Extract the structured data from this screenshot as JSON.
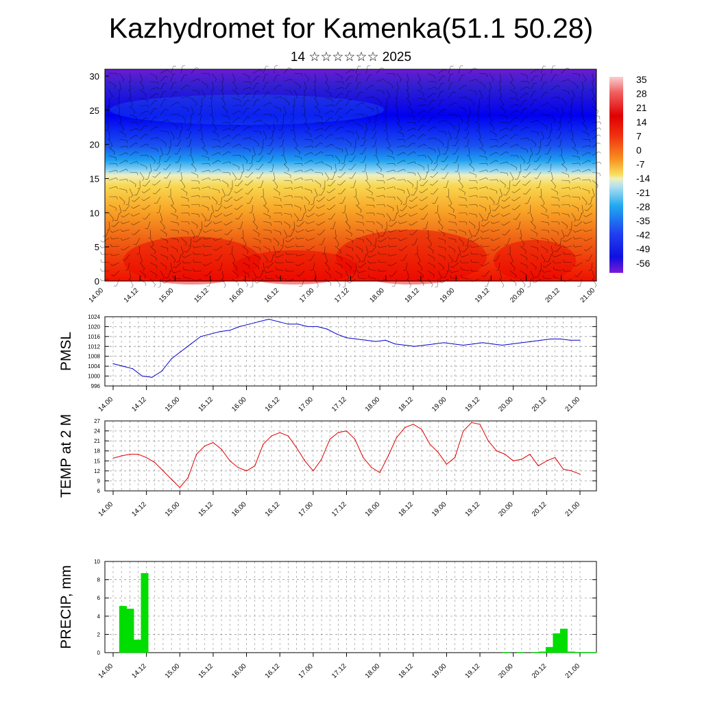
{
  "header": {
    "title": "Kazhydromet for Kamenka(51.1 50.28)",
    "subtitle": "14 ☆☆☆☆☆☆ 2025"
  },
  "x_axis_labels": [
    "14.00",
    "14.12",
    "15.00",
    "15.12",
    "16.00",
    "16.12",
    "17.00",
    "17.12",
    "18.00",
    "18.12",
    "19.00",
    "19.12",
    "20.00",
    "20.12",
    "21.00"
  ],
  "chart_data": [
    {
      "type": "heatmap",
      "name": "temperature-cross-section",
      "x_ticks": [
        "14.00",
        "14.12",
        "15.00",
        "15.12",
        "16.00",
        "16.12",
        "17.00",
        "17.12",
        "18.00",
        "18.12",
        "19.00",
        "19.12",
        "20.00",
        "20.12",
        "21.00"
      ],
      "y_ticks": [
        0,
        5,
        10,
        15,
        20,
        25,
        30
      ],
      "ylim": [
        0,
        31
      ],
      "colorbar_labels": [
        35,
        28,
        21,
        14,
        7,
        0,
        -7,
        -14,
        -21,
        -28,
        -35,
        -42,
        -49,
        -56
      ],
      "colorbar_range": [
        -60,
        40
      ],
      "colors": [
        "#7a1bd6",
        "#2a1bd0",
        "#0000f0",
        "#2850f0",
        "#1ea0f0",
        "#8ad0f0",
        "#f0f0c0",
        "#f8d850",
        "#f8a020",
        "#f06010",
        "#f02010",
        "#e00000",
        "#f08080",
        "#f8d0d0"
      ],
      "grid": false
    },
    {
      "type": "line",
      "name": "PMSL",
      "ylabel": "PMSL",
      "ylim": [
        996,
        1024
      ],
      "y_ticks": [
        996,
        1000,
        1004,
        1008,
        1012,
        1016,
        1020,
        1024
      ],
      "x_ticks": [
        "14.00",
        "14.12",
        "15.00",
        "15.12",
        "16.00",
        "16.12",
        "17.00",
        "17.12",
        "18.00",
        "18.12",
        "19.00",
        "19.12",
        "20.00",
        "20.12",
        "21.00"
      ],
      "color": "#0000cc",
      "grid": true,
      "values": [
        1005,
        1004,
        1003,
        1000,
        999.5,
        1002,
        1007,
        1010,
        1013,
        1016,
        1017,
        1018,
        1018.5,
        1020,
        1021,
        1022,
        1023,
        1022,
        1021,
        1021,
        1020,
        1020,
        1019,
        1017,
        1015.5,
        1015,
        1014.5,
        1014,
        1014.5,
        1013,
        1012.5,
        1012,
        1012.5,
        1013,
        1013.5,
        1013,
        1012.5,
        1013,
        1013.5,
        1013,
        1012.5,
        1013,
        1013.5,
        1014,
        1014.5,
        1015,
        1015,
        1014.5,
        1014.5
      ]
    },
    {
      "type": "line",
      "name": "TEMP at 2 M",
      "ylabel": "TEMP at 2 M",
      "ylim": [
        6,
        27
      ],
      "y_ticks": [
        6,
        9,
        12,
        15,
        18,
        21,
        24,
        27
      ],
      "x_ticks": [
        "14.00",
        "14.12",
        "15.00",
        "15.12",
        "16.00",
        "16.12",
        "17.00",
        "17.12",
        "18.00",
        "18.12",
        "19.00",
        "19.12",
        "20.00",
        "20.12",
        "21.00"
      ],
      "color": "#dd0000",
      "grid": true,
      "values": [
        15.8,
        16.5,
        17,
        17,
        16,
        14.5,
        12,
        9.5,
        7,
        10,
        17,
        19.5,
        20.5,
        18.5,
        15,
        13,
        12,
        13.5,
        20,
        22.5,
        23.5,
        22.5,
        19,
        15,
        12,
        15.5,
        21.5,
        23.5,
        24,
        21.5,
        16,
        13,
        11.5,
        16.5,
        22,
        25,
        26,
        24.5,
        20,
        17.5,
        14,
        16,
        24,
        26.5,
        26,
        21,
        18,
        17,
        15,
        15.5,
        17,
        13.5,
        15,
        16,
        12.5,
        12,
        11
      ]
    },
    {
      "type": "bar",
      "name": "PRECIP, mm",
      "ylabel": "PRECIP, mm",
      "ylim": [
        0,
        10
      ],
      "y_ticks": [
        0,
        2,
        4,
        6,
        8,
        10
      ],
      "x_ticks": [
        "14.00",
        "14.12",
        "15.00",
        "15.12",
        "16.00",
        "16.12",
        "17.00",
        "17.12",
        "18.00",
        "18.12",
        "19.00",
        "19.12",
        "20.00",
        "20.12",
        "21.00"
      ],
      "color": "#00dd00",
      "grid": true,
      "values": [
        0,
        0,
        5.1,
        4.8,
        1.4,
        8.7,
        0,
        0,
        0,
        0,
        0,
        0,
        0,
        0,
        0,
        0,
        0,
        0,
        0,
        0,
        0,
        0,
        0,
        0,
        0,
        0,
        0,
        0,
        0,
        0,
        0,
        0,
        0,
        0,
        0,
        0,
        0,
        0,
        0,
        0,
        0,
        0,
        0,
        0,
        0,
        0,
        0,
        0,
        0,
        0,
        0,
        0,
        0,
        0,
        0,
        0.05,
        0,
        0.05,
        0,
        0.05,
        0.1,
        0.6,
        2.1,
        2.6,
        0.1,
        0.05,
        0.05,
        0.05
      ]
    }
  ]
}
